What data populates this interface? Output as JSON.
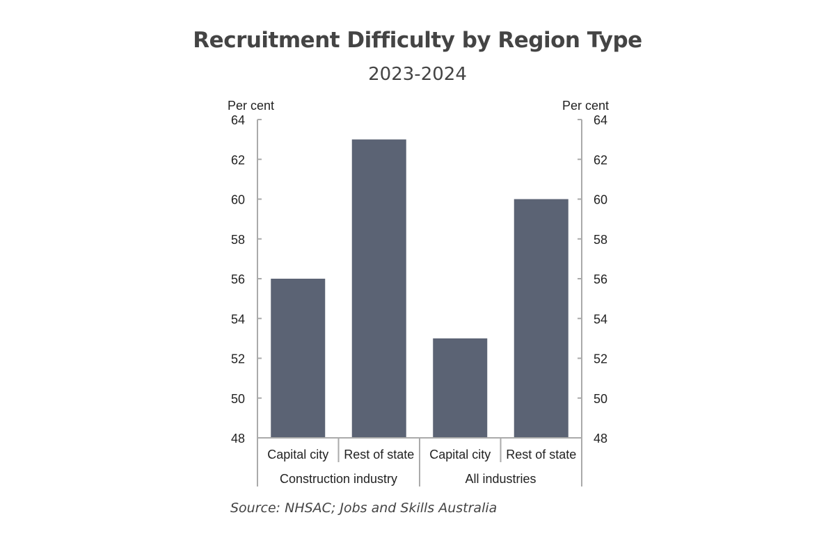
{
  "title": "Recruitment Difficulty by Region Type",
  "subtitle": "2023-2024",
  "source": "Source: NHSAC; Jobs and Skills Australia",
  "colors": {
    "bar": "#5b6374",
    "axis": "#aaaaaa",
    "text": "#222222"
  },
  "chart_data": {
    "type": "bar",
    "title": "Recruitment Difficulty by Region Type",
    "subtitle": "2023-2024",
    "ylabel": "Per cent",
    "ylabel_right": "Per cent",
    "ylim": [
      48,
      64
    ],
    "yticks": [
      48,
      50,
      52,
      54,
      56,
      58,
      60,
      62,
      64
    ],
    "grid": false,
    "legend": null,
    "groups": [
      "Construction industry",
      "All industries"
    ],
    "categories": [
      "Capital city",
      "Rest of state",
      "Capital city",
      "Rest of state"
    ],
    "category_groups": [
      "Construction industry",
      "Construction industry",
      "All industries",
      "All industries"
    ],
    "values": [
      56,
      63,
      53,
      60
    ]
  }
}
